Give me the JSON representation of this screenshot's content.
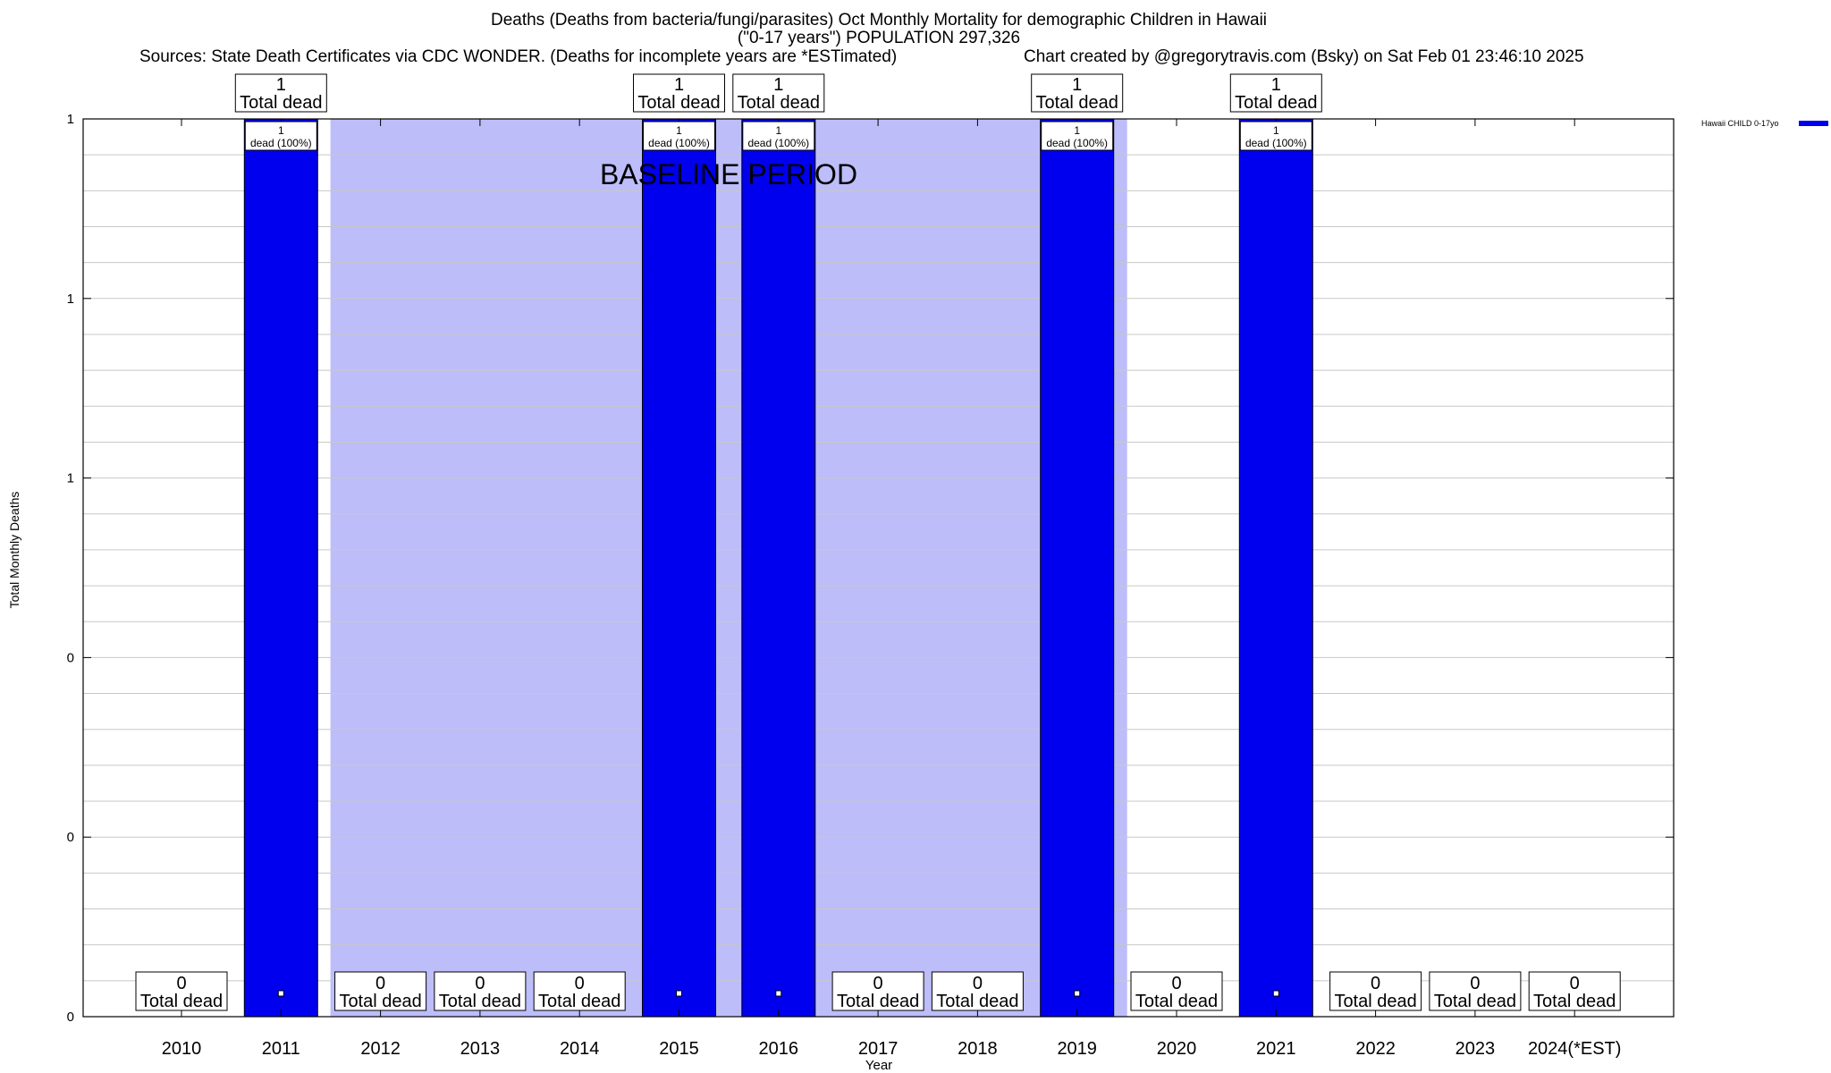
{
  "header": {
    "title_line1": "Deaths (Deaths from bacteria/fungi/parasites) Oct Monthly Mortality for demographic Children in Hawaii",
    "title_line2": "(\"0-17 years\") POPULATION 297,326",
    "sources": "Sources: State Death Certificates via CDC WONDER. (Deaths for incomplete years are *ESTimated)",
    "credit": "Chart created by @gregorytravis.com (Bsky) on Sat Feb 01 23:46:10 2025"
  },
  "chart_data": {
    "type": "bar",
    "xlabel": "Year",
    "ylabel": "Total Monthly Deaths",
    "categories": [
      "2010",
      "2011",
      "2012",
      "2013",
      "2014",
      "2015",
      "2016",
      "2017",
      "2018",
      "2019",
      "2020",
      "2021",
      "2022",
      "2023",
      "2024(*EST)"
    ],
    "series": [
      {
        "name": "Hawaii CHILD 0-17yo",
        "color": "#0000ee",
        "values": [
          0,
          1,
          0,
          0,
          0,
          1,
          1,
          0,
          0,
          1,
          0,
          1,
          0,
          0,
          0
        ]
      }
    ],
    "ylim": [
      0,
      1
    ],
    "y_tick_labels": [
      "0",
      "0",
      "0",
      "1",
      "1",
      "1"
    ],
    "grid": true,
    "legend_position": "top-right",
    "total_label": "Total dead",
    "bar_label_suffix": "dead (100%)",
    "baseline": {
      "label": "BASELINE PERIOD",
      "from": "2012",
      "to": "2019",
      "color": "#bdbdfa"
    }
  }
}
